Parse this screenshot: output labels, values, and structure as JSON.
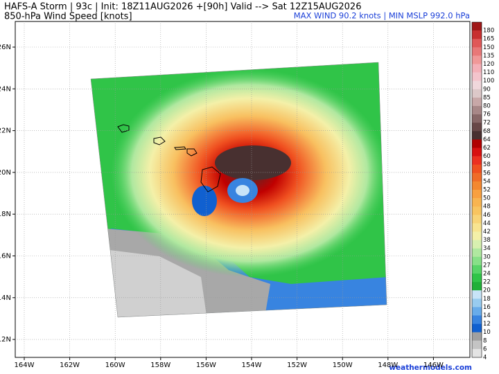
{
  "header": {
    "line1": "HAFS-A Storm | 93c | Init: 18Z11AUG2026 +[90h] Valid --> Sat 12Z15AUG2026",
    "line2": "850-hPa Wind Speed [knots]",
    "stats": "MAX WIND 90.2 knots | MIN MSLP 992.0 hPa"
  },
  "map": {
    "lon_labels": [
      "164W",
      "162W",
      "160W",
      "158W",
      "156W",
      "154W",
      "152W",
      "150W",
      "148W",
      "146W"
    ],
    "lat_labels": [
      "26N",
      "24N",
      "22N",
      "20N",
      "18N",
      "16N",
      "14N",
      "12N"
    ]
  },
  "colorbar": [
    {
      "value": 180,
      "color": "#a01818"
    },
    {
      "value": 165,
      "color": "#c83030"
    },
    {
      "value": 150,
      "color": "#e05858"
    },
    {
      "value": 135,
      "color": "#e87878"
    },
    {
      "value": 120,
      "color": "#f09898"
    },
    {
      "value": 110,
      "color": "#f4b0b8"
    },
    {
      "value": 100,
      "color": "#f4c4cc"
    },
    {
      "value": 90,
      "color": "#f0d8dc"
    },
    {
      "value": 85,
      "color": "#dcc8c8"
    },
    {
      "value": 80,
      "color": "#c8a8a8"
    },
    {
      "value": 76,
      "color": "#a88888"
    },
    {
      "value": 72,
      "color": "#886868"
    },
    {
      "value": 68,
      "color": "#684848"
    },
    {
      "value": 64,
      "color": "#483030"
    },
    {
      "value": 62,
      "color": "#b00000"
    },
    {
      "value": 60,
      "color": "#d81010"
    },
    {
      "value": 58,
      "color": "#ec3020"
    },
    {
      "value": 56,
      "color": "#f05020"
    },
    {
      "value": 54,
      "color": "#f06c28"
    },
    {
      "value": 52,
      "color": "#f48830"
    },
    {
      "value": 50,
      "color": "#f8a040"
    },
    {
      "value": 48,
      "color": "#f8b450"
    },
    {
      "value": 46,
      "color": "#f8c460"
    },
    {
      "value": 44,
      "color": "#f8d478"
    },
    {
      "value": 42,
      "color": "#f8e490"
    },
    {
      "value": 38,
      "color": "#f4f0a8"
    },
    {
      "value": 34,
      "color": "#d8f0b0"
    },
    {
      "value": 30,
      "color": "#b0e8a0"
    },
    {
      "value": 27,
      "color": "#88e088"
    },
    {
      "value": 24,
      "color": "#58d468"
    },
    {
      "value": 22,
      "color": "#30c448"
    },
    {
      "value": 20,
      "color": "#20b038"
    },
    {
      "value": 18,
      "color": "#c8e4f8"
    },
    {
      "value": 16,
      "color": "#98ccf0"
    },
    {
      "value": 14,
      "color": "#68acea"
    },
    {
      "value": 12,
      "color": "#3884e0"
    },
    {
      "value": 10,
      "color": "#1060d0"
    },
    {
      "value": 8,
      "color": "#a0a0a0"
    },
    {
      "value": 6,
      "color": "#c4c4c4"
    },
    {
      "value": 4,
      "color": "#e4e4e4"
    }
  ],
  "watermark": "weathermodels.com"
}
